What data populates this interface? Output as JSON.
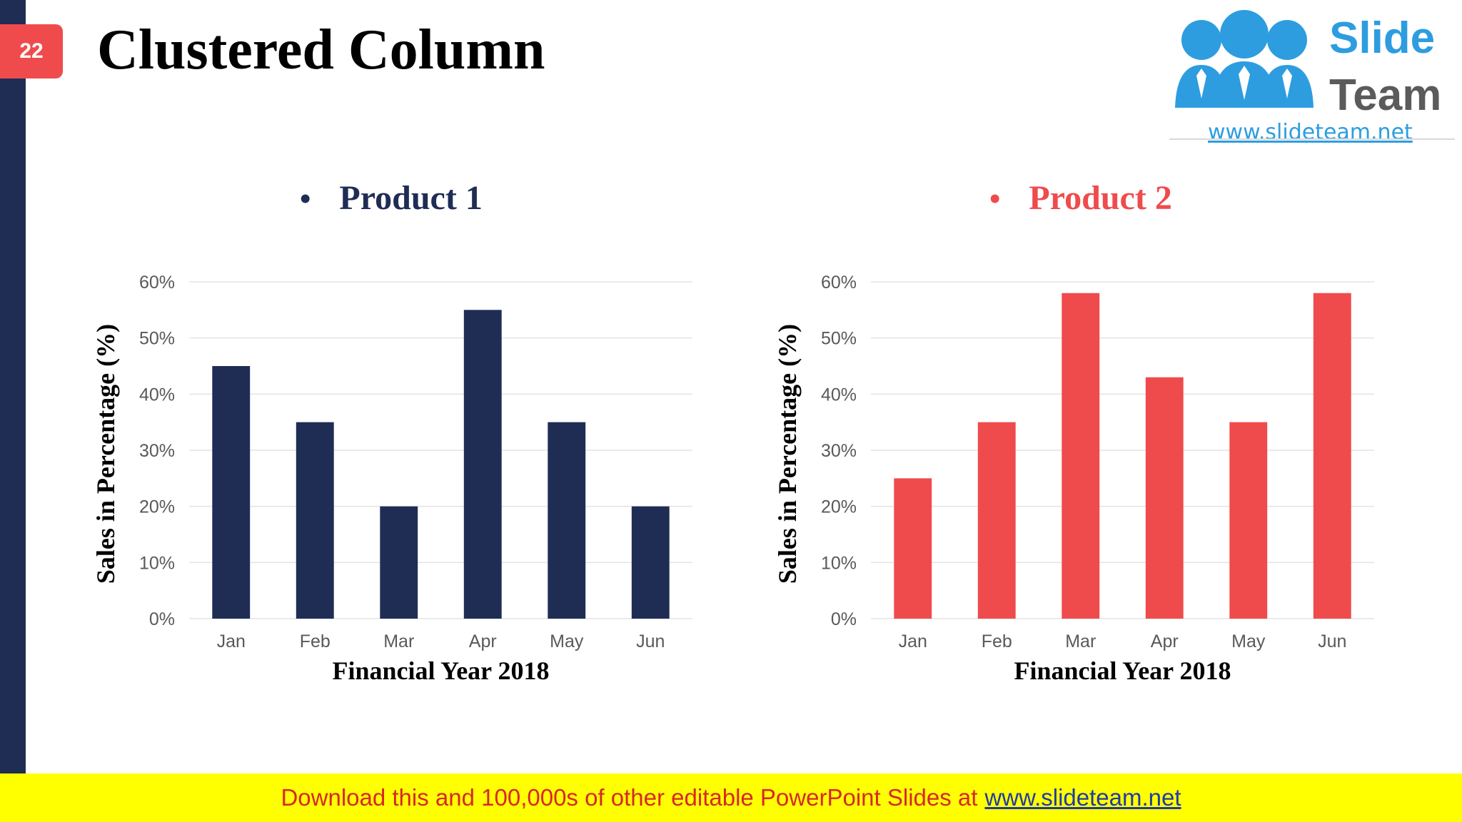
{
  "slide": {
    "number": "22",
    "title": "Clustered Column"
  },
  "logo": {
    "word1": "Slide",
    "word2": "Team",
    "url": "www.slideteam.net"
  },
  "colors": {
    "navy": "#1f2d55",
    "red": "#ef4b4d",
    "logo_blue": "#2d9de0",
    "footer_bg": "#ffff00"
  },
  "footer": {
    "text": "Download this and 100,000s of other editable PowerPoint Slides at",
    "link": "www.slideteam.net"
  },
  "chart_data": [
    {
      "type": "bar",
      "title": "Product 1",
      "categories": [
        "Jan",
        "Feb",
        "Mar",
        "Apr",
        "May",
        "Jun"
      ],
      "values": [
        45,
        35,
        20,
        55,
        35,
        20
      ],
      "unit": "%",
      "xlabel": "Financial Year 2018",
      "ylabel": "Sales in Percentage (%)",
      "ylim": [
        0,
        60
      ],
      "yticks": [
        "0%",
        "10%",
        "20%",
        "30%",
        "40%",
        "50%",
        "60%"
      ],
      "color": "#1f2d55",
      "grid": true
    },
    {
      "type": "bar",
      "title": "Product 2",
      "categories": [
        "Jan",
        "Feb",
        "Mar",
        "Apr",
        "May",
        "Jun"
      ],
      "values": [
        25,
        35,
        58,
        43,
        35,
        58
      ],
      "unit": "%",
      "xlabel": "Financial Year 2018",
      "ylabel": "Sales in Percentage (%)",
      "ylim": [
        0,
        60
      ],
      "yticks": [
        "0%",
        "10%",
        "20%",
        "30%",
        "40%",
        "50%",
        "60%"
      ],
      "color": "#ef4b4d",
      "grid": true
    }
  ]
}
